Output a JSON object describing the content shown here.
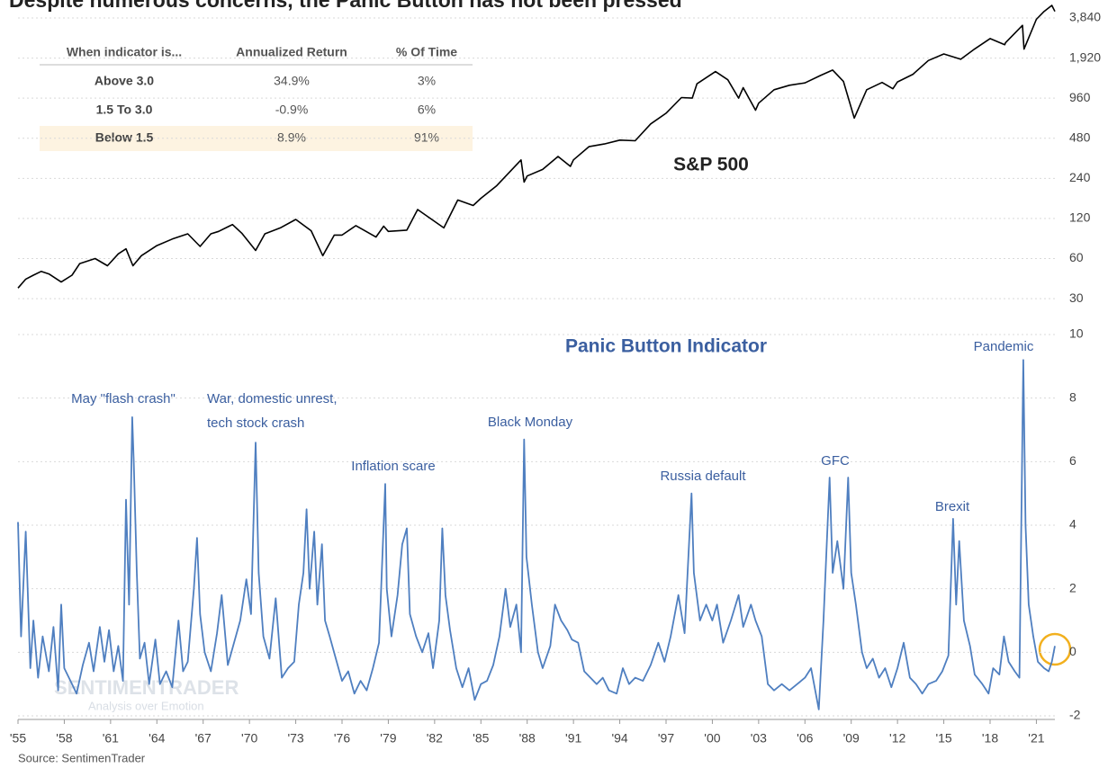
{
  "title": "Despite numerous concerns, the Panic Button has not been pressed",
  "source": "Source: SentimenTrader",
  "watermark": [
    "SENTIMENTRADER",
    "Analysis over Emotion"
  ],
  "table": {
    "columns": [
      "When indicator is...",
      "Annualized Return",
      "% Of Time"
    ],
    "rows": [
      [
        "Above 3.0",
        "34.9%",
        "3%"
      ],
      [
        "1.5 To 3.0",
        "-0.9%",
        "6%"
      ],
      [
        "Below 1.5",
        "8.9%",
        "91%"
      ]
    ]
  },
  "chart_data": [
    {
      "type": "line",
      "title": "S&P 500",
      "log_scale": true,
      "grid": true,
      "xlim": [
        1955,
        2022.2
      ],
      "ylim": [
        22.7,
        4900
      ],
      "yticks": [
        {
          "value": 3840,
          "label": "3,840"
        },
        {
          "value": 1920,
          "label": "1,920"
        },
        960,
        480,
        240,
        120,
        60,
        30
      ],
      "series": [
        {
          "name": "S&P 500",
          "color": "#000000",
          "x": [
            1955.0,
            1955.5,
            1956.0,
            1956.5,
            1957.0,
            1957.8,
            1958.5,
            1959.0,
            1960.0,
            1960.8,
            1961.5,
            1962.0,
            1962.45,
            1963.0,
            1964.0,
            1965.0,
            1966.0,
            1966.8,
            1967.5,
            1968.0,
            1968.9,
            1969.5,
            1970.4,
            1971.0,
            1972.0,
            1973.0,
            1974.0,
            1974.75,
            1975.5,
            1976.0,
            1976.9,
            1978.2,
            1978.7,
            1979.0,
            1980.2,
            1980.9,
            1982.6,
            1983.5,
            1984.5,
            1985.0,
            1986.0,
            1987.6,
            1987.8,
            1988.0,
            1989.0,
            1990.0,
            1990.8,
            1991.0,
            1992.0,
            1993.0,
            1994.0,
            1995.0,
            1996.0,
            1997.0,
            1998.0,
            1998.7,
            1999.0,
            2000.2,
            2001.0,
            2001.7,
            2002.0,
            2002.8,
            2003.0,
            2004.0,
            2005.0,
            2006.0,
            2007.0,
            2007.8,
            2008.5,
            2009.2,
            2010.0,
            2011.0,
            2011.7,
            2012.0,
            2013.0,
            2014.0,
            2015.0,
            2016.1,
            2017.0,
            2018.0,
            2018.95,
            2019.0,
            2020.1,
            2020.2,
            2021.0,
            2021.5,
            2022.0,
            2022.2
          ],
          "values": [
            36,
            42,
            45,
            48,
            46,
            40,
            45,
            55,
            60,
            53,
            65,
            71,
            53,
            63,
            75,
            84,
            92,
            74,
            92,
            96,
            108,
            93,
            69,
            92,
            102,
            118,
            97,
            63,
            90,
            90,
            106,
            87,
            105,
            96,
            98,
            140,
            102,
            165,
            150,
            170,
            210,
            330,
            225,
            250,
            280,
            350,
            295,
            330,
            415,
            435,
            465,
            460,
            615,
            740,
            970,
            960,
            1230,
            1520,
            1320,
            960,
            1150,
            780,
            880,
            1110,
            1200,
            1250,
            1420,
            1560,
            1280,
            680,
            1110,
            1260,
            1130,
            1270,
            1450,
            1840,
            2060,
            1880,
            2250,
            2690,
            2420,
            2500,
            3380,
            2240,
            3750,
            4300,
            4770,
            4300
          ]
        }
      ]
    },
    {
      "type": "line",
      "title": "Panic Button Indicator",
      "grid": true,
      "xlim": [
        1955,
        2022.2
      ],
      "ylim": [
        -2,
        10
      ],
      "yticks": [
        10,
        8,
        6,
        4,
        2,
        0,
        -2
      ],
      "xticks": [
        {
          "value": 1955,
          "label": "'55"
        },
        {
          "value": 1958,
          "label": "'58"
        },
        {
          "value": 1961,
          "label": "'61"
        },
        {
          "value": 1964,
          "label": "'64"
        },
        {
          "value": 1967,
          "label": "'67"
        },
        {
          "value": 1970,
          "label": "'70"
        },
        {
          "value": 1973,
          "label": "'73"
        },
        {
          "value": 1976,
          "label": "'76"
        },
        {
          "value": 1979,
          "label": "'79"
        },
        {
          "value": 1982,
          "label": "'82"
        },
        {
          "value": 1985,
          "label": "'85"
        },
        {
          "value": 1988,
          "label": "'88"
        },
        {
          "value": 1991,
          "label": "'91"
        },
        {
          "value": 1994,
          "label": "'94"
        },
        {
          "value": 1997,
          "label": "'97"
        },
        {
          "value": 2000,
          "label": "'00"
        },
        {
          "value": 2003,
          "label": "'03"
        },
        {
          "value": 2006,
          "label": "'06"
        },
        {
          "value": 2009,
          "label": "'09"
        },
        {
          "value": 2012,
          "label": "'12"
        },
        {
          "value": 2015,
          "label": "'15"
        },
        {
          "value": 2018,
          "label": "'18"
        },
        {
          "value": 2021,
          "label": "'21"
        }
      ],
      "annotations": [
        [
          "May \"flash crash\""
        ],
        [
          "War, domestic unrest,",
          "tech stock crash"
        ],
        [
          "Inflation scare"
        ],
        [
          "Black Monday"
        ],
        [
          "Russia default"
        ],
        [
          "GFC"
        ],
        [
          "Brexit"
        ],
        [
          "Pandemic"
        ]
      ],
      "series": [
        {
          "name": "Panic Button Indicator",
          "color": "#4f7fc0",
          "x": [
            1955.0,
            1955.2,
            1955.5,
            1955.8,
            1956.0,
            1956.3,
            1956.6,
            1957.0,
            1957.3,
            1957.6,
            1957.8,
            1958.0,
            1958.4,
            1958.8,
            1959.2,
            1959.6,
            1959.9,
            1960.3,
            1960.6,
            1960.9,
            1961.2,
            1961.5,
            1961.8,
            1962.0,
            1962.2,
            1962.4,
            1962.5,
            1962.7,
            1962.9,
            1963.2,
            1963.5,
            1963.9,
            1964.2,
            1964.6,
            1965.0,
            1965.4,
            1965.7,
            1966.0,
            1966.4,
            1966.6,
            1966.8,
            1967.1,
            1967.5,
            1967.9,
            1968.2,
            1968.6,
            1969.0,
            1969.4,
            1969.8,
            1970.1,
            1970.4,
            1970.6,
            1970.9,
            1971.3,
            1971.7,
            1972.1,
            1972.5,
            1972.9,
            1973.2,
            1973.5,
            1973.7,
            1973.9,
            1974.2,
            1974.4,
            1974.7,
            1974.9,
            1975.2,
            1975.6,
            1976.0,
            1976.4,
            1976.8,
            1977.2,
            1977.6,
            1978.0,
            1978.4,
            1978.8,
            1978.9,
            1979.2,
            1979.6,
            1979.9,
            1980.2,
            1980.4,
            1980.8,
            1981.2,
            1981.6,
            1981.9,
            1982.3,
            1982.5,
            1982.7,
            1983.0,
            1983.4,
            1983.8,
            1984.2,
            1984.6,
            1985.0,
            1985.4,
            1985.8,
            1986.2,
            1986.6,
            1986.9,
            1987.3,
            1987.6,
            1987.8,
            1987.95,
            1988.3,
            1988.7,
            1989.0,
            1989.5,
            1989.8,
            1990.2,
            1990.6,
            1990.9,
            1991.3,
            1991.7,
            1992.1,
            1992.5,
            1992.9,
            1993.3,
            1993.8,
            1994.2,
            1994.6,
            1995.0,
            1995.5,
            1996.0,
            1996.5,
            1996.9,
            1997.3,
            1997.8,
            1998.2,
            1998.65,
            1998.8,
            1999.2,
            1999.6,
            2000.0,
            2000.3,
            2000.7,
            2001.2,
            2001.7,
            2002.0,
            2002.5,
            2002.8,
            2003.2,
            2003.6,
            2004.0,
            2004.5,
            2005.0,
            2005.5,
            2006.0,
            2006.4,
            2006.9,
            2007.2,
            2007.6,
            2007.8,
            2008.1,
            2008.5,
            2008.8,
            2009.0,
            2009.3,
            2009.7,
            2010.0,
            2010.4,
            2010.8,
            2011.2,
            2011.6,
            2012.0,
            2012.4,
            2012.8,
            2013.2,
            2013.6,
            2014.0,
            2014.5,
            2014.9,
            2015.3,
            2015.6,
            2015.8,
            2016.0,
            2016.3,
            2016.7,
            2017.0,
            2017.5,
            2017.9,
            2018.2,
            2018.6,
            2018.9,
            2019.2,
            2019.6,
            2019.9,
            2020.15,
            2020.3,
            2020.5,
            2020.8,
            2021.1,
            2021.5,
            2021.8,
            2022.0,
            2022.2
          ],
          "values": [
            4.1,
            0.5,
            3.8,
            -0.5,
            1.0,
            -0.8,
            0.5,
            -0.6,
            0.8,
            -1.2,
            1.5,
            -0.5,
            -0.9,
            -1.3,
            -0.4,
            0.3,
            -0.6,
            0.8,
            -0.3,
            0.7,
            -0.6,
            0.2,
            -0.9,
            4.8,
            1.5,
            7.4,
            6.0,
            2.5,
            -0.2,
            0.3,
            -1.0,
            0.4,
            -1.0,
            -0.6,
            -1.1,
            1.0,
            -0.6,
            -0.3,
            2.0,
            3.6,
            1.2,
            0.0,
            -0.6,
            0.6,
            1.8,
            -0.4,
            0.3,
            1.0,
            2.3,
            1.2,
            6.6,
            2.5,
            0.5,
            -0.2,
            1.7,
            -0.8,
            -0.5,
            -0.3,
            1.5,
            2.5,
            4.5,
            2.0,
            3.8,
            1.5,
            3.4,
            1.0,
            0.5,
            -0.2,
            -0.9,
            -0.6,
            -1.3,
            -0.9,
            -1.2,
            -0.5,
            0.3,
            5.3,
            2.0,
            0.5,
            1.8,
            3.4,
            3.9,
            1.2,
            0.5,
            0.0,
            0.6,
            -0.5,
            1.0,
            3.9,
            1.8,
            0.7,
            -0.5,
            -1.1,
            -0.5,
            -1.5,
            -1.0,
            -0.9,
            -0.4,
            0.5,
            2.0,
            0.8,
            1.5,
            0.0,
            6.7,
            3.0,
            1.5,
            0.0,
            -0.5,
            0.2,
            1.5,
            1.0,
            0.7,
            0.4,
            0.3,
            -0.6,
            -0.8,
            -1.0,
            -0.8,
            -1.2,
            -1.3,
            -0.5,
            -1.0,
            -0.8,
            -0.9,
            -0.4,
            0.3,
            -0.3,
            0.5,
            1.8,
            0.6,
            5.0,
            2.5,
            1.0,
            1.5,
            1.0,
            1.5,
            0.3,
            1.0,
            1.8,
            0.8,
            1.5,
            1.0,
            0.5,
            -1.0,
            -1.2,
            -1.0,
            -1.2,
            -1.0,
            -0.8,
            -0.5,
            -1.8,
            1.0,
            5.5,
            2.5,
            3.5,
            2.0,
            5.5,
            2.5,
            1.5,
            0.0,
            -0.5,
            -0.2,
            -0.8,
            -0.5,
            -1.1,
            -0.5,
            0.3,
            -0.8,
            -1.0,
            -1.3,
            -1.0,
            -0.9,
            -0.6,
            -0.1,
            4.2,
            1.5,
            3.5,
            1.0,
            0.2,
            -0.7,
            -1.0,
            -1.3,
            -0.5,
            -0.7,
            0.5,
            -0.3,
            -0.6,
            -0.8,
            9.2,
            4.0,
            1.5,
            0.5,
            -0.3,
            -0.5,
            -0.6,
            -0.3,
            0.2
          ]
        }
      ]
    }
  ]
}
